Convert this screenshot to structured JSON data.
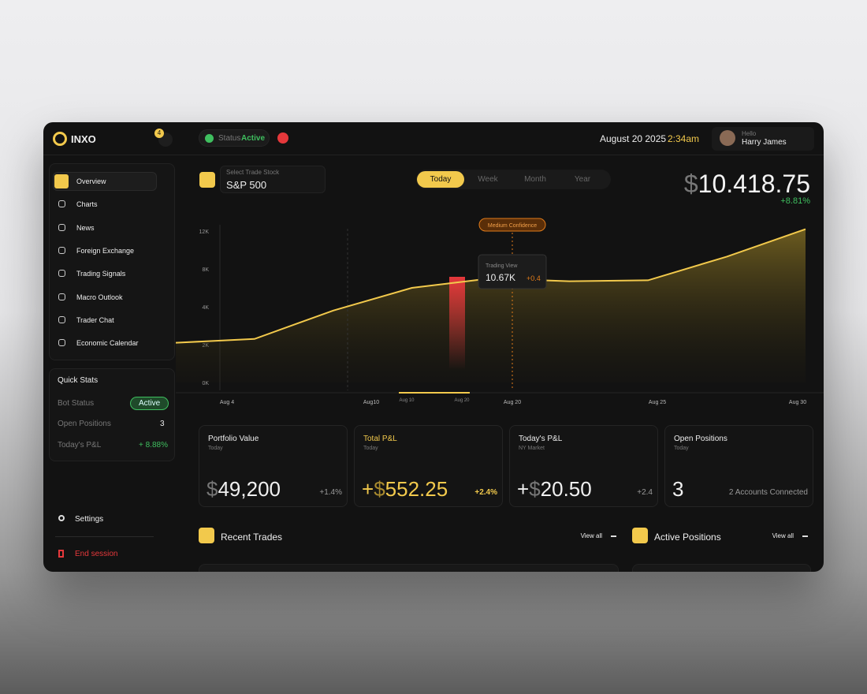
{
  "brand": "INXO",
  "notifications": 4,
  "status": {
    "label": "Status",
    "value": "Active"
  },
  "date": "August 20 2025",
  "time": "2:34am",
  "user": {
    "greeting": "Hello",
    "name": "Harry James"
  },
  "nav": [
    "Overview",
    "Charts",
    "News",
    "Foreign Exchange",
    "Trading Signals",
    "Macro Outlook",
    "Trader Chat",
    "Economic Calendar"
  ],
  "quick_stats": {
    "title": "Quick Stats",
    "bot_status": {
      "label": "Bot Status",
      "value": "Active"
    },
    "open_positions": {
      "label": "Open Positions",
      "value": 3
    },
    "pnl": {
      "label": "Today's P&L",
      "value": "+ 8.88%"
    }
  },
  "settings": "Settings",
  "end_session": "End session",
  "stock_select": {
    "label": "Select Trade Stock",
    "value": "S&P 500"
  },
  "periods": [
    "Today",
    "Week",
    "Month",
    "Year"
  ],
  "balance": {
    "currency": "$",
    "amount": "10.418.75",
    "change": "+8.81%"
  },
  "chart": {
    "type": "line",
    "yticks": [
      {
        "value": 12,
        "label": "12K"
      },
      {
        "value": 8,
        "label": "8K"
      },
      {
        "value": 4,
        "label": "4K"
      },
      {
        "value": 2,
        "label": "2K"
      },
      {
        "value": 0,
        "label": "0K"
      }
    ],
    "x_labels": [
      "Aug 4",
      "Aug10",
      "Aug 20",
      "Aug 25",
      "Aug 30"
    ],
    "range": [
      "Aug 10",
      "Aug 20"
    ],
    "values": [
      2.1,
      2.3,
      3.8,
      6.0,
      7.0,
      6.7,
      6.8,
      9.3,
      12.2
    ],
    "color": "#f2c94c",
    "annotation": "Medium Confidence",
    "tooltip": {
      "title": "Trading View",
      "value": "10.67K",
      "change": "+0.4"
    }
  },
  "cards": [
    {
      "title": "Portfolio Value",
      "subtitle": "Today",
      "currency": "$",
      "amount": "49,200",
      "change": "+1.4%"
    },
    {
      "title": "Total P&L",
      "subtitle": "Today",
      "sign": "+",
      "currency": "$",
      "amount": "552.25",
      "change": "+2.4%"
    },
    {
      "title": "Today's P&L",
      "subtitle": "NY Market",
      "sign": "+",
      "currency": "$",
      "amount": "20.50",
      "change": "+2.4"
    },
    {
      "title": "Open Positions",
      "subtitle": "Today",
      "amount": "3",
      "change": "2 Accounts Connected"
    }
  ],
  "sections": [
    {
      "title": "Recent Trades",
      "link": "View all"
    },
    {
      "title": "Active Positions",
      "link": "View all"
    }
  ]
}
